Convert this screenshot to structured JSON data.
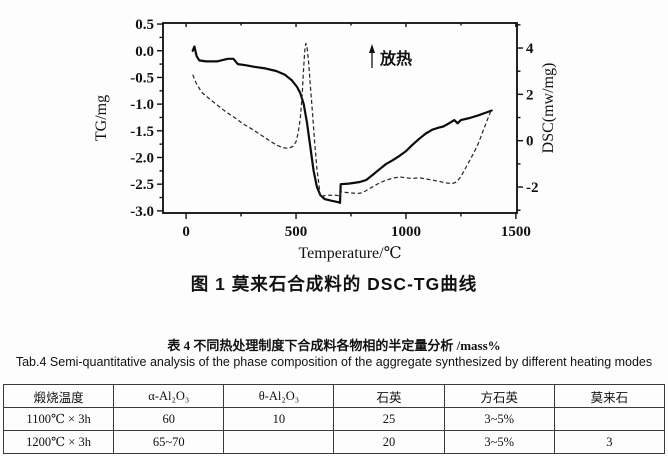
{
  "figure": {
    "caption": "图 1 莫来石合成料的 DSC-TG曲线",
    "annotation": "放热"
  },
  "chart_data": {
    "type": "line",
    "title": "",
    "xlabel": "Temperature/℃",
    "ylabel_left": "TG/mg",
    "ylabel_right": "DSC(mw/mg)",
    "xlim": [
      -105,
      1505
    ],
    "ylim_left": [
      -3.04,
      0.52
    ],
    "ylim_right": [
      -3.12,
      5.08
    ],
    "grid": false,
    "legend": "none",
    "x_axis": {
      "major_values": [
        0,
        500,
        1000,
        1500
      ],
      "major_labels": [
        "0",
        "500",
        "1000",
        "1500"
      ],
      "minor_values": [
        250,
        750,
        1250
      ]
    },
    "y_left_axis": {
      "major_values": [
        0.5,
        0.0,
        -0.5,
        -1.0,
        -1.5,
        -2.0,
        -2.5,
        -3.0
      ],
      "major_labels": [
        "0.5",
        "0.0",
        "-0.5",
        "-1.0",
        "-1.5",
        "-2.0",
        "-2.5",
        "-3.0"
      ],
      "minor_values": [
        0.25,
        -0.25,
        -0.75,
        -1.25,
        -1.75,
        -2.25,
        -2.75
      ]
    },
    "y_right_axis": {
      "major_values": [
        4,
        2,
        0,
        -2
      ],
      "major_labels": [
        "4",
        "2",
        "0",
        "-2"
      ],
      "minor_values": [
        5,
        3,
        1,
        -1,
        -3
      ]
    },
    "series": [
      {
        "name": "TG",
        "axis": "left",
        "style": "solid",
        "points": [
          [
            30,
            0.0
          ],
          [
            38,
            0.08
          ],
          [
            48,
            -0.1
          ],
          [
            60,
            -0.18
          ],
          [
            90,
            -0.2
          ],
          [
            140,
            -0.2
          ],
          [
            190,
            -0.15
          ],
          [
            215,
            -0.15
          ],
          [
            235,
            -0.25
          ],
          [
            270,
            -0.27
          ],
          [
            310,
            -0.3
          ],
          [
            360,
            -0.33
          ],
          [
            410,
            -0.38
          ],
          [
            450,
            -0.45
          ],
          [
            480,
            -0.55
          ],
          [
            505,
            -0.68
          ],
          [
            520,
            -0.8
          ],
          [
            535,
            -1.0
          ],
          [
            550,
            -1.35
          ],
          [
            565,
            -1.8
          ],
          [
            580,
            -2.25
          ],
          [
            595,
            -2.55
          ],
          [
            610,
            -2.7
          ],
          [
            630,
            -2.78
          ],
          [
            660,
            -2.81
          ],
          [
            695,
            -2.84
          ],
          [
            700,
            -2.85
          ],
          [
            703,
            -2.5
          ],
          [
            740,
            -2.49
          ],
          [
            790,
            -2.46
          ],
          [
            820,
            -2.42
          ],
          [
            850,
            -2.32
          ],
          [
            880,
            -2.22
          ],
          [
            910,
            -2.12
          ],
          [
            940,
            -2.05
          ],
          [
            970,
            -1.97
          ],
          [
            1000,
            -1.88
          ],
          [
            1030,
            -1.76
          ],
          [
            1060,
            -1.65
          ],
          [
            1090,
            -1.55
          ],
          [
            1120,
            -1.48
          ],
          [
            1150,
            -1.44
          ],
          [
            1170,
            -1.42
          ],
          [
            1200,
            -1.35
          ],
          [
            1220,
            -1.3
          ],
          [
            1235,
            -1.36
          ],
          [
            1250,
            -1.3
          ],
          [
            1290,
            -1.26
          ],
          [
            1330,
            -1.21
          ],
          [
            1370,
            -1.15
          ],
          [
            1390,
            -1.12
          ]
        ]
      },
      {
        "name": "DSC",
        "axis": "right",
        "style": "dashed",
        "points": [
          [
            30,
            2.85
          ],
          [
            45,
            2.5
          ],
          [
            70,
            2.1
          ],
          [
            100,
            1.85
          ],
          [
            140,
            1.55
          ],
          [
            180,
            1.25
          ],
          [
            220,
            1.0
          ],
          [
            260,
            0.72
          ],
          [
            300,
            0.5
          ],
          [
            340,
            0.25
          ],
          [
            380,
            0.0
          ],
          [
            410,
            -0.18
          ],
          [
            440,
            -0.3
          ],
          [
            465,
            -0.33
          ],
          [
            485,
            -0.25
          ],
          [
            500,
            -0.05
          ],
          [
            510,
            0.35
          ],
          [
            520,
            1.0
          ],
          [
            528,
            2.0
          ],
          [
            535,
            3.2
          ],
          [
            541,
            4.0
          ],
          [
            545,
            4.2
          ],
          [
            550,
            4.05
          ],
          [
            557,
            3.4
          ],
          [
            565,
            2.4
          ],
          [
            575,
            1.2
          ],
          [
            585,
            -0.1
          ],
          [
            595,
            -1.2
          ],
          [
            605,
            -1.95
          ],
          [
            610,
            -2.43
          ],
          [
            625,
            -2.38
          ],
          [
            650,
            -2.35
          ],
          [
            680,
            -2.35
          ],
          [
            700,
            -2.38
          ],
          [
            705,
            -2.2
          ],
          [
            740,
            -2.25
          ],
          [
            780,
            -2.28
          ],
          [
            800,
            -2.25
          ],
          [
            820,
            -2.15
          ],
          [
            850,
            -1.98
          ],
          [
            880,
            -1.82
          ],
          [
            910,
            -1.7
          ],
          [
            940,
            -1.62
          ],
          [
            970,
            -1.56
          ],
          [
            1000,
            -1.6
          ],
          [
            1030,
            -1.63
          ],
          [
            1060,
            -1.6
          ],
          [
            1090,
            -1.65
          ],
          [
            1120,
            -1.7
          ],
          [
            1150,
            -1.75
          ],
          [
            1180,
            -1.82
          ],
          [
            1210,
            -1.85
          ],
          [
            1230,
            -1.78
          ],
          [
            1250,
            -1.55
          ],
          [
            1270,
            -1.2
          ],
          [
            1290,
            -0.85
          ],
          [
            1310,
            -0.5
          ],
          [
            1330,
            -0.1
          ],
          [
            1350,
            0.4
          ],
          [
            1370,
            0.9
          ],
          [
            1385,
            1.25
          ]
        ]
      }
    ]
  },
  "table": {
    "title_zh": "表 4 不同热处理制度下合成料各物相的半定量分析 /mass%",
    "title_en": "Tab.4 Semi-quantitative analysis of the phase composition of the aggregate synthesized by different heating modes",
    "columns": [
      "煅烧温度",
      "α-Al₂O₃",
      "θ-Al₂O₃",
      "石英",
      "方石英",
      "莫来石"
    ],
    "rows": [
      [
        "1100℃ × 3h",
        "60",
        "10",
        "25",
        "3~5%",
        ""
      ],
      [
        "1200℃ × 3h",
        "65~70",
        "",
        "20",
        "3~5%",
        "3"
      ]
    ]
  },
  "colors": {
    "ink": "#111111",
    "background": "#fdfdfd"
  }
}
